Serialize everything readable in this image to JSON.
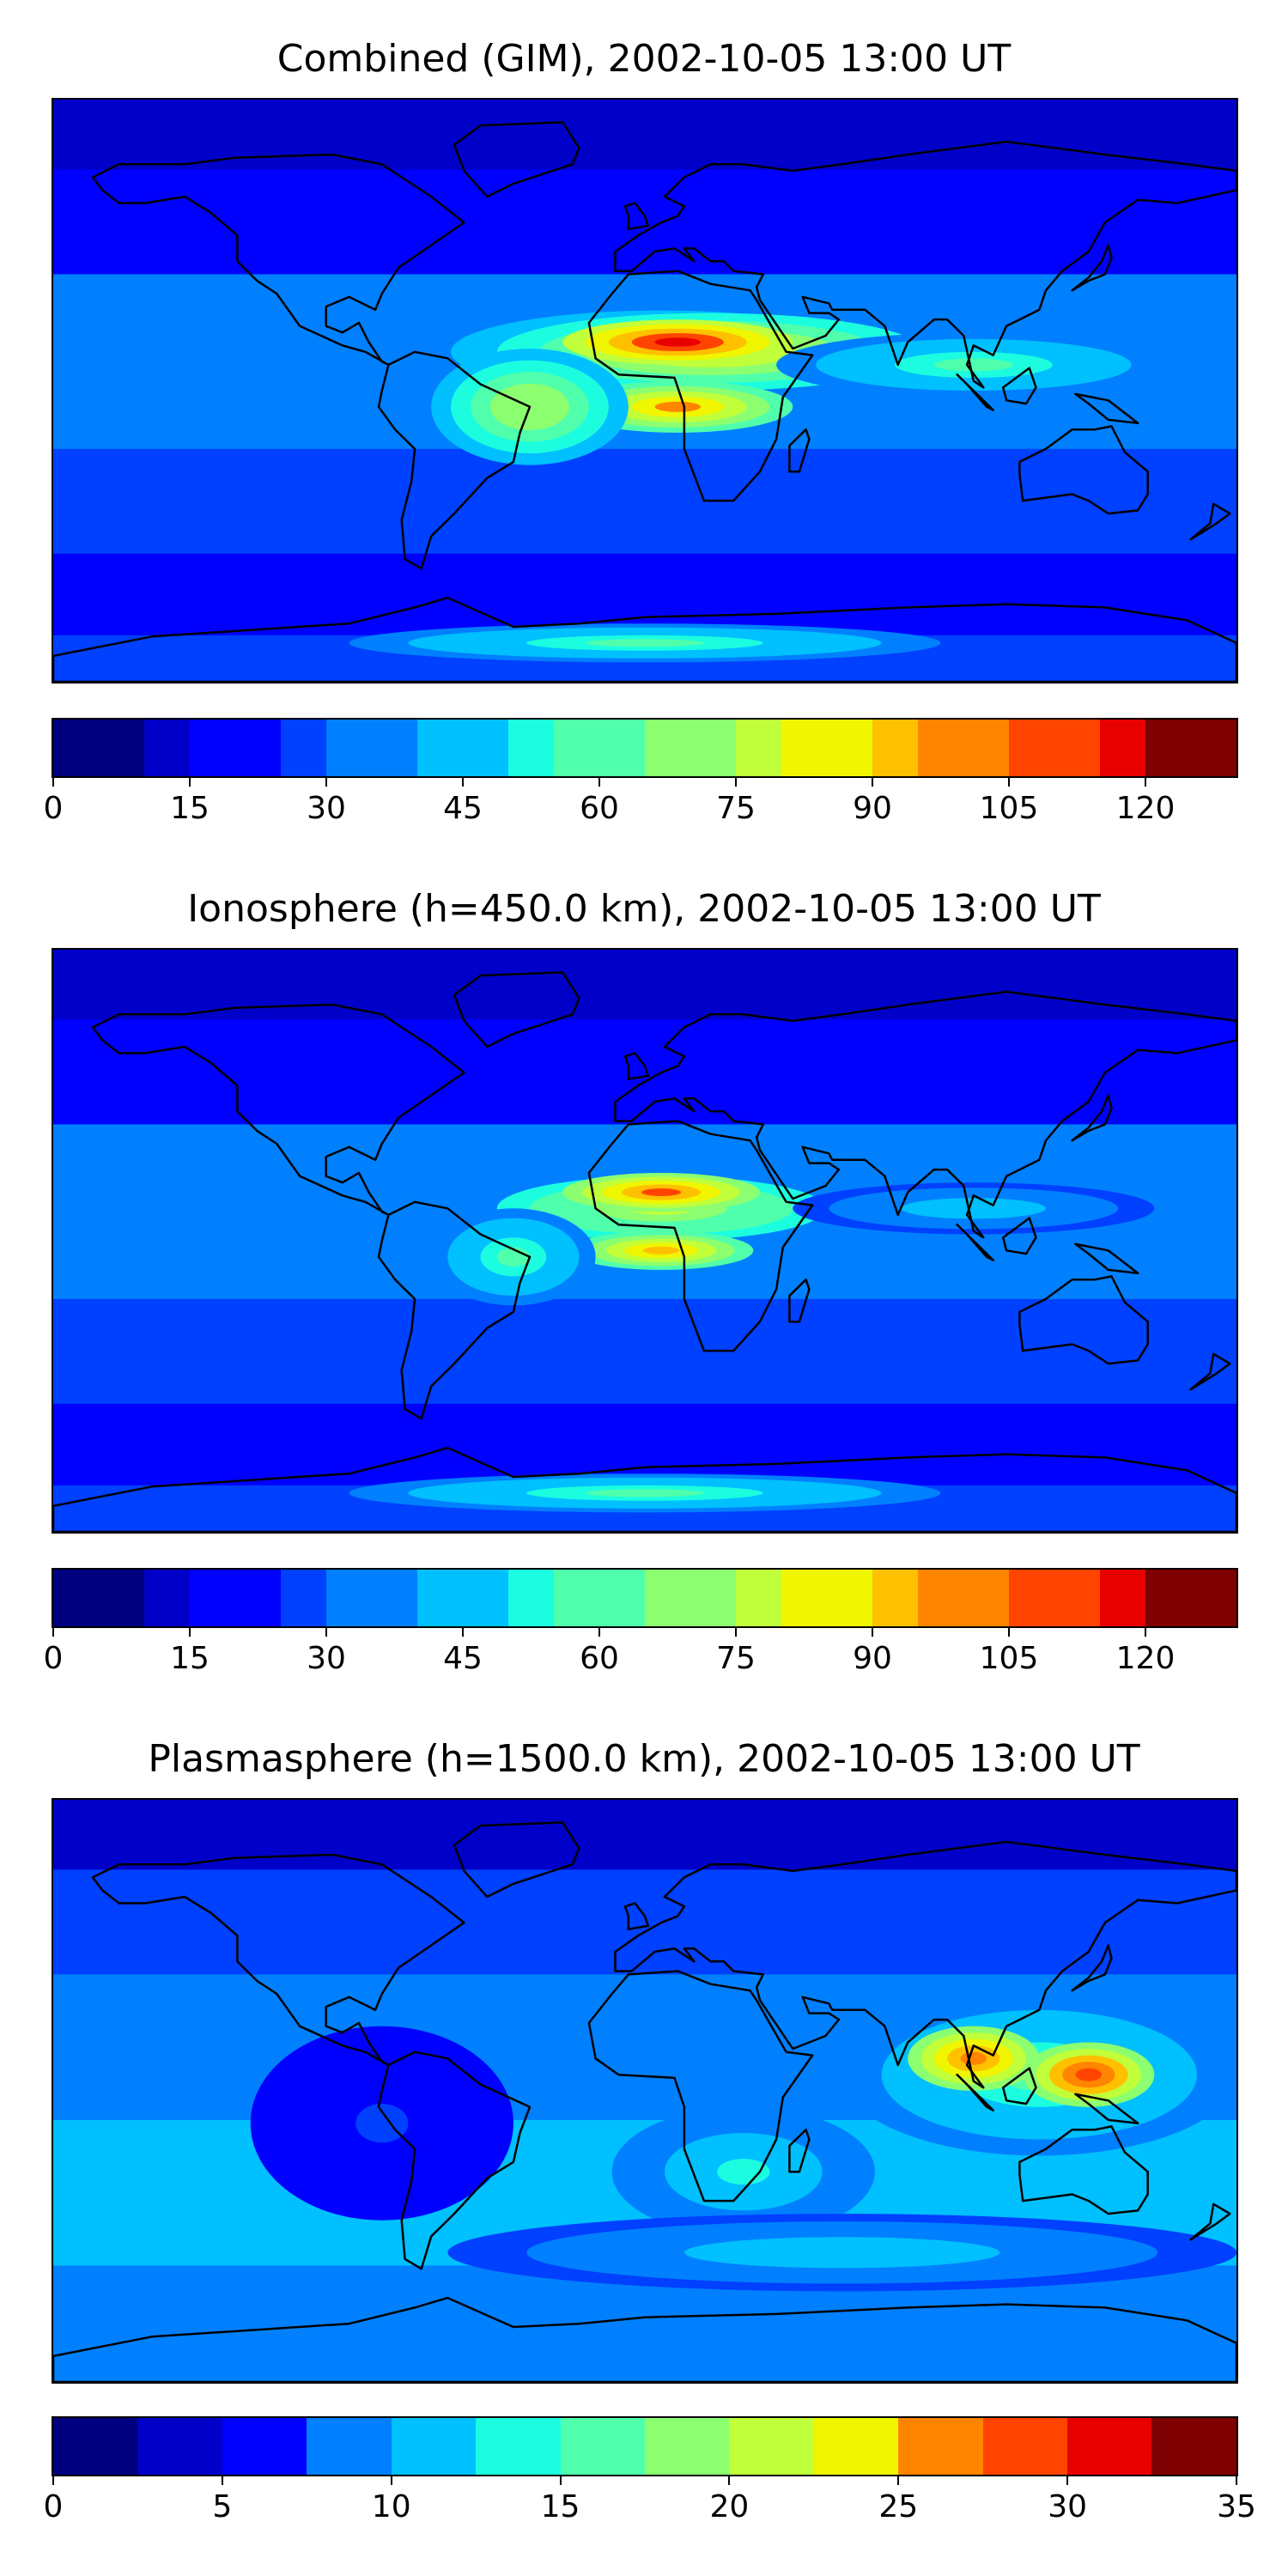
{
  "panels": [
    {
      "title": "Combined (GIM), 2002-10-05 13:00 UT",
      "colorbar": {
        "levels": [
          0,
          5,
          10,
          15,
          20,
          25,
          30,
          35,
          40,
          45,
          50,
          55,
          60,
          65,
          70,
          75,
          80,
          85,
          90,
          95,
          100,
          105,
          110,
          115,
          120,
          125,
          130
        ],
        "ticks": [
          "0",
          "15",
          "30",
          "45",
          "60",
          "75",
          "90",
          "105",
          "120"
        ],
        "tick_values": [
          0,
          15,
          30,
          45,
          60,
          75,
          90,
          105,
          120
        ],
        "vmax": 130
      },
      "blobs": [
        {
          "lon": 5,
          "lat": 12,
          "rx": 80,
          "ry": 16,
          "level": 0.45
        },
        {
          "lon": 20,
          "lat": 12,
          "rx": 65,
          "ry": 12,
          "level": 0.65
        },
        {
          "lon": 10,
          "lat": 15,
          "rx": 35,
          "ry": 7,
          "level": 0.9
        },
        {
          "lon": 10,
          "lat": -5,
          "rx": 35,
          "ry": 8,
          "level": 0.75
        },
        {
          "lon": -35,
          "lat": -5,
          "rx": 30,
          "ry": 18,
          "level": 0.55
        },
        {
          "lon": 100,
          "lat": 8,
          "rx": 60,
          "ry": 10,
          "level": 0.45
        },
        {
          "lon": 0,
          "lat": -78,
          "rx": 90,
          "ry": 6,
          "level": 0.45
        }
      ]
    },
    {
      "title": "Ionosphere  (h=450.0 km), 2002-10-05 13:00 UT",
      "colorbar": {
        "levels": [
          0,
          5,
          10,
          15,
          20,
          25,
          30,
          35,
          40,
          45,
          50,
          55,
          60,
          65,
          70,
          75,
          80,
          85,
          90,
          95,
          100,
          105,
          110,
          115,
          120,
          125,
          130
        ],
        "ticks": [
          "0",
          "15",
          "30",
          "45",
          "60",
          "75",
          "90",
          "105",
          "120"
        ],
        "tick_values": [
          0,
          15,
          30,
          45,
          60,
          75,
          90,
          105,
          120
        ],
        "vmax": 130
      },
      "blobs": [
        {
          "lon": 5,
          "lat": 10,
          "rx": 75,
          "ry": 16,
          "level": 0.4
        },
        {
          "lon": 5,
          "lat": 10,
          "rx": 50,
          "ry": 10,
          "level": 0.6
        },
        {
          "lon": 5,
          "lat": 15,
          "rx": 30,
          "ry": 6,
          "level": 0.82
        },
        {
          "lon": 5,
          "lat": -3,
          "rx": 28,
          "ry": 6,
          "level": 0.7
        },
        {
          "lon": -40,
          "lat": -5,
          "rx": 25,
          "ry": 15,
          "level": 0.45
        },
        {
          "lon": 100,
          "lat": 10,
          "rx": 55,
          "ry": 8,
          "level": 0.35
        },
        {
          "lon": 0,
          "lat": -78,
          "rx": 90,
          "ry": 6,
          "level": 0.45
        }
      ]
    },
    {
      "title": "Plasmasphere (h=1500.0 km), 2002-10-05 13:00 UT",
      "colorbar": {
        "levels": [
          0,
          2.5,
          5,
          7.5,
          10,
          12.5,
          15,
          17.5,
          20,
          22.5,
          25,
          27.5,
          30,
          32.5,
          35
        ],
        "ticks": [
          "0",
          "5",
          "10",
          "15",
          "20",
          "25",
          "30",
          "35"
        ],
        "tick_values": [
          0,
          5,
          10,
          15,
          20,
          25,
          30,
          35
        ],
        "vmax": 35
      },
      "blobs": [
        {
          "lon": 120,
          "lat": 5,
          "rx": 60,
          "ry": 25,
          "level": 0.45
        },
        {
          "lon": 100,
          "lat": 10,
          "rx": 20,
          "ry": 10,
          "level": 0.8
        },
        {
          "lon": 135,
          "lat": 5,
          "rx": 20,
          "ry": 10,
          "level": 0.85
        },
        {
          "lon": 30,
          "lat": -25,
          "rx": 40,
          "ry": 20,
          "level": 0.4
        },
        {
          "lon": 60,
          "lat": -50,
          "rx": 120,
          "ry": 12,
          "level": 0.35
        },
        {
          "lon": -80,
          "lat": -10,
          "rx": 40,
          "ry": 30,
          "level": 0.2
        }
      ]
    }
  ],
  "jet_colors": [
    "#00007f",
    "#0000c8",
    "#0000ff",
    "#0040ff",
    "#0080ff",
    "#00c0ff",
    "#1cfde0",
    "#50ffac",
    "#8cff70",
    "#c0ff3a",
    "#f0f500",
    "#ffc000",
    "#ff8400",
    "#ff4400",
    "#e80000",
    "#7f0000"
  ]
}
